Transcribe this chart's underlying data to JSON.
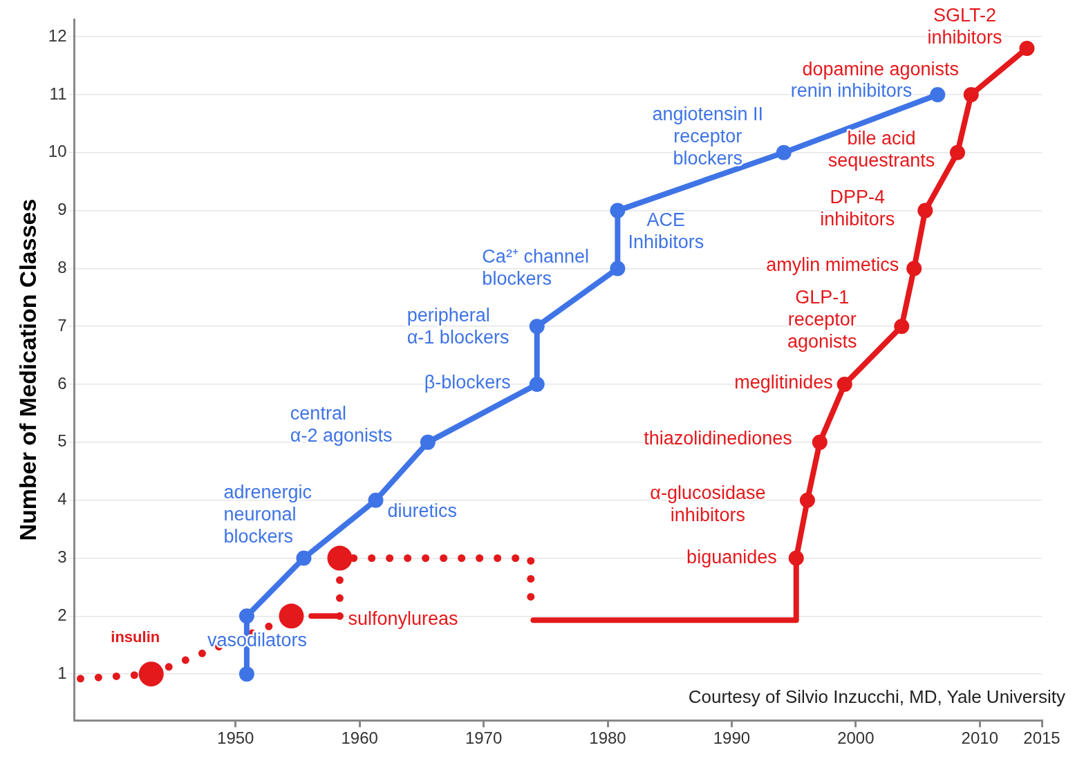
{
  "chart_data": {
    "type": "line",
    "ylabel": "Number of Medication Classes",
    "xlim": [
      1937,
      2015
    ],
    "xticks": [
      1950,
      1960,
      1970,
      1980,
      1990,
      2000,
      2010,
      2015
    ],
    "ylim": [
      0.2,
      12.3
    ],
    "yticks": [
      1,
      2,
      3,
      4,
      5,
      6,
      7,
      8,
      9,
      10,
      11,
      12
    ],
    "grid": "y",
    "legend": false,
    "series": [
      {
        "type": "line",
        "color": "#3f74e6",
        "marker": "circle",
        "line_style": "solid",
        "x": [
          1950.9,
          1950.9,
          1955.5,
          1961.3,
          1965.5,
          1974.3,
          1974.3,
          1980.8,
          1980.8,
          1994.2,
          2006.6
        ],
        "values": [
          1,
          2,
          3,
          4,
          5,
          6,
          7,
          8,
          9,
          10,
          11
        ]
      },
      {
        "type": "line",
        "color": "#e3191c",
        "marker": "none",
        "line_style": "dotted",
        "x": [
          1937.5,
          1943.2,
          1952.9
        ],
        "values": [
          0.92,
          1,
          1.84
        ]
      },
      {
        "type": "line",
        "color": "#e3191c",
        "marker": "none",
        "line_style": "solid",
        "x": [
          1956.1,
          1958.4
        ],
        "values": [
          2,
          2
        ]
      },
      {
        "type": "line",
        "color": "#e3191c",
        "marker": "none",
        "line_style": "dotted",
        "x": [
          1958.4,
          1958.4,
          1973.8,
          1973.8
        ],
        "values": [
          2,
          3,
          3,
          2.3
        ]
      },
      {
        "type": "line",
        "color": "#e3191c",
        "marker": "none",
        "line_style": "solid",
        "x": [
          1974,
          1995.2,
          1995.2
        ],
        "values": [
          1.93,
          1.93,
          3
        ]
      },
      {
        "type": "line",
        "color": "#e3191c",
        "marker": "circle",
        "line_style": "solid",
        "x": [
          1995.2,
          1996.1,
          1997.1,
          1999.1,
          2003.7,
          2004.7,
          2005.6,
          2008.2,
          2009.3,
          2013.8
        ],
        "values": [
          3,
          4,
          5,
          6,
          7,
          8,
          9,
          10,
          11,
          11.8
        ]
      },
      {
        "type": "scatter",
        "color": "#e3191c",
        "marker": "circle",
        "x": [
          1943.2,
          1954.5,
          1958.4
        ],
        "values": [
          1,
          2,
          3
        ]
      }
    ],
    "annotations": [
      {
        "text": "vasodilators",
        "x": 1950.9,
        "y": 1
      },
      {
        "text": "adrenergic\nneuronal\nblockers",
        "x": 1955.5,
        "y": 3
      },
      {
        "text": "diuretics",
        "x": 1961.3,
        "y": 4
      },
      {
        "text": "central\nα-2 agonists",
        "x": 1965.5,
        "y": 5
      },
      {
        "text": "β-blockers",
        "x": 1974.3,
        "y": 6
      },
      {
        "text": "peripheral\nα-1 blockers",
        "x": 1974.3,
        "y": 7
      },
      {
        "text": "Ca²⁺ channel\nblockers",
        "x": 1980.8,
        "y": 8
      },
      {
        "text": "ACE\nInhibitors",
        "x": 1980.8,
        "y": 9
      },
      {
        "text": "angiotensin II\nreceptor\nblockers",
        "x": 1994.2,
        "y": 10
      },
      {
        "text": "renin inhibitors",
        "x": 2006.6,
        "y": 11
      },
      {
        "text": "insulin",
        "x": 1943.2,
        "y": 1
      },
      {
        "text": "sulfonylureas",
        "x": 1958.4,
        "y": 2
      },
      {
        "text": "biguanides",
        "x": 1995.2,
        "y": 3
      },
      {
        "text": "α-glucosidase\ninhibitors",
        "x": 1996.1,
        "y": 4
      },
      {
        "text": "thiazolidinediones",
        "x": 1997.1,
        "y": 5
      },
      {
        "text": "meglitinides",
        "x": 1999.1,
        "y": 6
      },
      {
        "text": "GLP-1\nreceptor\nagonists",
        "x": 2003.7,
        "y": 7
      },
      {
        "text": "amylin mimetics",
        "x": 2004.7,
        "y": 8
      },
      {
        "text": "DPP-4\ninhibitors",
        "x": 2005.6,
        "y": 9
      },
      {
        "text": "bile acid\nsequestrants",
        "x": 2008.2,
        "y": 10
      },
      {
        "text": "dopamine agonists",
        "x": 2009.3,
        "y": 11
      },
      {
        "text": "SGLT-2\ninhibitors",
        "x": 2013.8,
        "y": 11.8
      },
      "Courtesy of Silvio Inzucchi, MD, Yale University"
    ]
  }
}
